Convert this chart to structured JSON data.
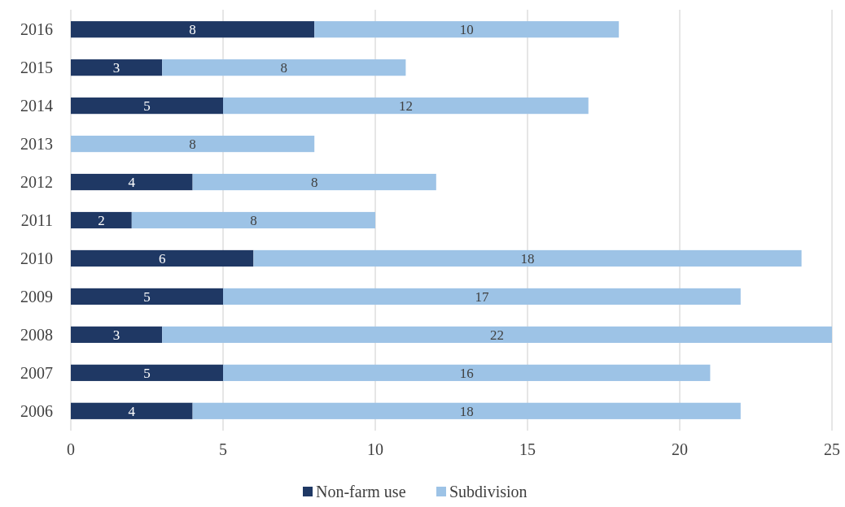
{
  "chart_data": {
    "type": "bar",
    "orientation": "horizontal",
    "stacked": true,
    "categories": [
      "2016",
      "2015",
      "2014",
      "2013",
      "2012",
      "2011",
      "2010",
      "2009",
      "2008",
      "2007",
      "2006"
    ],
    "series": [
      {
        "name": "Non-farm use",
        "color": "#1f3864",
        "values": [
          8,
          3,
          5,
          0,
          4,
          2,
          6,
          5,
          3,
          5,
          4
        ],
        "value_labels": [
          "8",
          "3",
          "5",
          null,
          "4",
          "2",
          "6",
          "5",
          "3",
          "5",
          "4"
        ]
      },
      {
        "name": "Subdivision",
        "color": "#9dc3e6",
        "values": [
          10,
          8,
          12,
          8,
          8,
          8,
          18,
          17,
          22,
          16,
          18
        ],
        "value_labels": [
          "10",
          "8",
          "12",
          "8",
          "8",
          "8",
          "18",
          "17",
          "22",
          "16",
          "18"
        ]
      }
    ],
    "xlim": [
      0,
      25
    ],
    "xticks": [
      0,
      5,
      10,
      15,
      20,
      25
    ],
    "grid": "x",
    "legend": "bottom"
  }
}
